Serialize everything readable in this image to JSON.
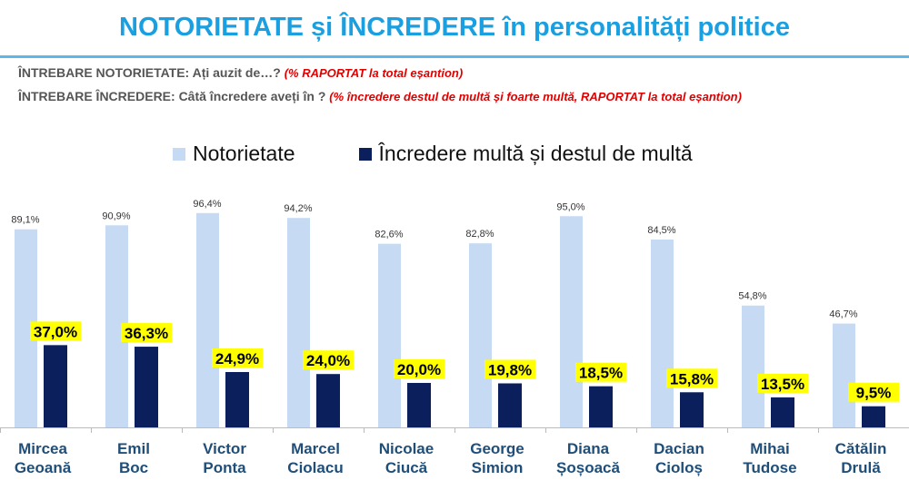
{
  "title": "NOTORIETATE și ÎNCREDERE în personalități politice",
  "questions": [
    {
      "label": "ÎNTREBARE NOTORIETATE: Ați auzit de…?",
      "note": "(% RAPORTAT la total eșantion)"
    },
    {
      "label": "ÎNTREBARE ÎNCREDERE: Câtă încredere aveți în ?",
      "note": "(%  încredere destul de multă și foarte multă, RAPORTAT la total eșantion)"
    }
  ],
  "chart_data": {
    "type": "bar",
    "categories": [
      [
        "Mircea",
        "Geoană"
      ],
      [
        "Emil",
        "Boc"
      ],
      [
        "Victor",
        "Ponta"
      ],
      [
        "Marcel",
        "Ciolacu"
      ],
      [
        "Nicolae",
        "Ciucă"
      ],
      [
        "George",
        "Simion"
      ],
      [
        "Diana",
        "Șoșoacă"
      ],
      [
        "Dacian",
        "Cioloș"
      ],
      [
        "Mihai",
        "Tudose"
      ],
      [
        "Cătălin",
        "Drulă"
      ]
    ],
    "series": [
      {
        "name": "Notorietate",
        "color": "#c6dbf3",
        "values": [
          89.1,
          90.9,
          96.4,
          94.2,
          82.6,
          82.8,
          95.0,
          84.5,
          54.8,
          46.7
        ],
        "labels": [
          "89,1%",
          "90,9%",
          "96,4%",
          "94,2%",
          "82,6%",
          "82,8%",
          "95,0%",
          "84,5%",
          "54,8%",
          "46,7%"
        ]
      },
      {
        "name": "Încredere multă și destul de multă",
        "color": "#0b1f5c",
        "label_highlight": "#ffff00",
        "values": [
          37.0,
          36.3,
          24.9,
          24.0,
          20.0,
          19.8,
          18.5,
          15.8,
          13.5,
          9.5
        ],
        "labels": [
          "37,0%",
          "36,3%",
          "24,9%",
          "24,0%",
          "20,0%",
          "19,8%",
          "18,5%",
          "15,8%",
          "13,5%",
          "9,5%"
        ]
      }
    ],
    "ylim": [
      0,
      100
    ],
    "grid": false,
    "legend": "top"
  }
}
